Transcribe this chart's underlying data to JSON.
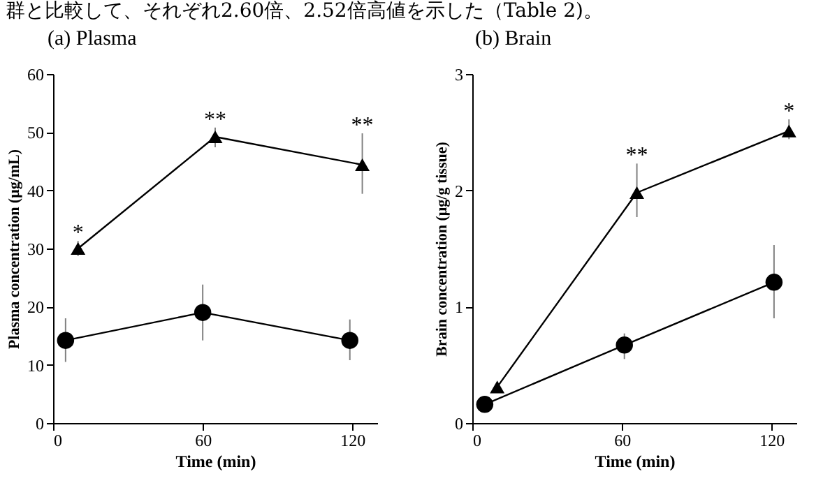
{
  "chart_data": [
    {
      "type": "line",
      "title": "(a)  Plasma",
      "xlabel": "Time (min)",
      "ylabel": "Plasma concentration (μg/mL)",
      "xlim": [
        0,
        130
      ],
      "xticks": [
        0,
        60,
        120
      ],
      "ylim": [
        0,
        60
      ],
      "yticks": [
        0,
        10,
        20,
        30,
        40,
        50,
        60
      ],
      "annotations": [
        "群と比較して、それぞれ2.60倍、2.52倍高値を示した（Table 2)。",
        {
          "text": "*",
          "x": 10,
          "y": 30
        },
        {
          "text": "**",
          "x": 65,
          "y": 49.2
        },
        {
          "text": "**",
          "x": 124,
          "y": 44.4
        }
      ],
      "series": [
        {
          "color": "#000000",
          "marker": "circle",
          "x": [
            5,
            60,
            119
          ],
          "values": [
            14.2,
            19.0,
            14.2
          ],
          "errors": [
            [
              10.5,
              18
            ],
            [
              14.2,
              23.8
            ],
            [
              10.8,
              17.8
            ]
          ]
        },
        {
          "color": "#000000",
          "marker": "triangle",
          "x": [
            10,
            65,
            124
          ],
          "values": [
            30,
            49.2,
            44.4
          ],
          "errors": [
            [
              28.7,
              31.3
            ],
            [
              47.4,
              50.8
            ],
            [
              39.4,
              49.8
            ]
          ]
        }
      ]
    },
    {
      "type": "line",
      "title": "(b) Brain",
      "xlabel": "Time (min)",
      "ylabel": "Brain concentration (μg/g tissue)",
      "xlim": [
        0,
        130
      ],
      "xticks": [
        0,
        60,
        120
      ],
      "ylim": [
        0,
        3
      ],
      "yticks": [
        0,
        1,
        2,
        3
      ],
      "annotations": [
        {
          "text": "**",
          "x": 66,
          "y": 1.98
        },
        {
          "text": "*",
          "x": 127,
          "y": 2.51
        }
      ],
      "series": [
        {
          "color": "#000000",
          "marker": "circle",
          "x": [
            5,
            61,
            121
          ],
          "values": [
            0.16,
            0.67,
            1.21
          ],
          "errors": [
            null,
            [
              0.55,
              0.77
            ],
            [
              0.9,
              1.53
            ]
          ]
        },
        {
          "color": "#000000",
          "marker": "triangle",
          "x": [
            10,
            66,
            127
          ],
          "values": [
            0.31,
            1.98,
            2.51
          ],
          "errors": [
            null,
            [
              1.77,
              2.23
            ],
            [
              2.44,
              2.61
            ]
          ]
        }
      ]
    }
  ]
}
